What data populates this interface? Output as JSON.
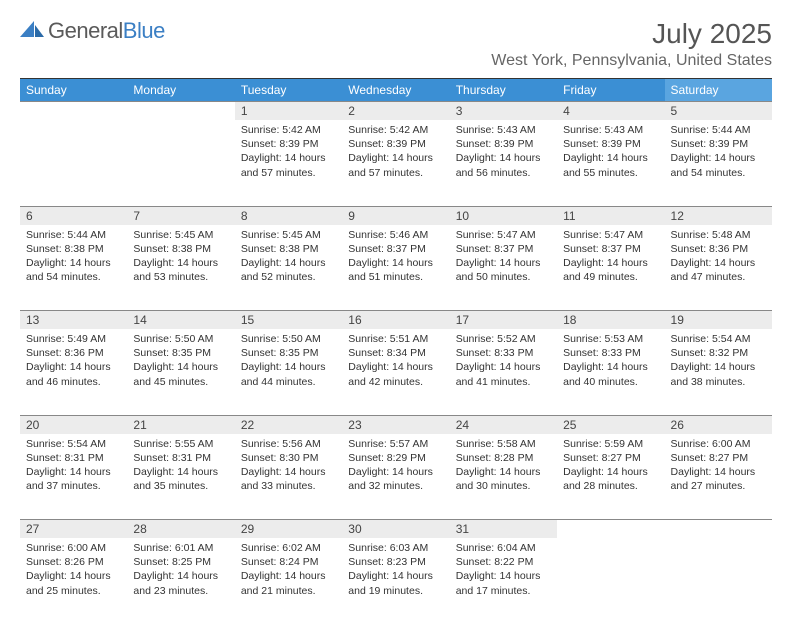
{
  "logo": {
    "part1": "General",
    "part2": "Blue"
  },
  "title": "July 2025",
  "location": "West York, Pennsylvania, United States",
  "styling": {
    "header_bg": "#3b8fd4",
    "header_sat_bg": "#5aa5e0",
    "header_fg": "#ffffff",
    "daynum_bg": "#ececec",
    "border_color": "#888888",
    "title_color": "#555555",
    "location_color": "#666666",
    "logo_gray": "#5a5a5a",
    "logo_blue": "#3b7fc4",
    "font_day_header": 12,
    "font_daynum": 12,
    "font_info": 10.5,
    "font_title": 28,
    "font_location": 16
  },
  "day_headers": [
    "Sunday",
    "Monday",
    "Tuesday",
    "Wednesday",
    "Thursday",
    "Friday",
    "Saturday"
  ],
  "weeks": [
    [
      null,
      null,
      {
        "n": "1",
        "sr": "Sunrise: 5:42 AM",
        "ss": "Sunset: 8:39 PM",
        "dl1": "Daylight: 14 hours",
        "dl2": "and 57 minutes."
      },
      {
        "n": "2",
        "sr": "Sunrise: 5:42 AM",
        "ss": "Sunset: 8:39 PM",
        "dl1": "Daylight: 14 hours",
        "dl2": "and 57 minutes."
      },
      {
        "n": "3",
        "sr": "Sunrise: 5:43 AM",
        "ss": "Sunset: 8:39 PM",
        "dl1": "Daylight: 14 hours",
        "dl2": "and 56 minutes."
      },
      {
        "n": "4",
        "sr": "Sunrise: 5:43 AM",
        "ss": "Sunset: 8:39 PM",
        "dl1": "Daylight: 14 hours",
        "dl2": "and 55 minutes."
      },
      {
        "n": "5",
        "sr": "Sunrise: 5:44 AM",
        "ss": "Sunset: 8:39 PM",
        "dl1": "Daylight: 14 hours",
        "dl2": "and 54 minutes."
      }
    ],
    [
      {
        "n": "6",
        "sr": "Sunrise: 5:44 AM",
        "ss": "Sunset: 8:38 PM",
        "dl1": "Daylight: 14 hours",
        "dl2": "and 54 minutes."
      },
      {
        "n": "7",
        "sr": "Sunrise: 5:45 AM",
        "ss": "Sunset: 8:38 PM",
        "dl1": "Daylight: 14 hours",
        "dl2": "and 53 minutes."
      },
      {
        "n": "8",
        "sr": "Sunrise: 5:45 AM",
        "ss": "Sunset: 8:38 PM",
        "dl1": "Daylight: 14 hours",
        "dl2": "and 52 minutes."
      },
      {
        "n": "9",
        "sr": "Sunrise: 5:46 AM",
        "ss": "Sunset: 8:37 PM",
        "dl1": "Daylight: 14 hours",
        "dl2": "and 51 minutes."
      },
      {
        "n": "10",
        "sr": "Sunrise: 5:47 AM",
        "ss": "Sunset: 8:37 PM",
        "dl1": "Daylight: 14 hours",
        "dl2": "and 50 minutes."
      },
      {
        "n": "11",
        "sr": "Sunrise: 5:47 AM",
        "ss": "Sunset: 8:37 PM",
        "dl1": "Daylight: 14 hours",
        "dl2": "and 49 minutes."
      },
      {
        "n": "12",
        "sr": "Sunrise: 5:48 AM",
        "ss": "Sunset: 8:36 PM",
        "dl1": "Daylight: 14 hours",
        "dl2": "and 47 minutes."
      }
    ],
    [
      {
        "n": "13",
        "sr": "Sunrise: 5:49 AM",
        "ss": "Sunset: 8:36 PM",
        "dl1": "Daylight: 14 hours",
        "dl2": "and 46 minutes."
      },
      {
        "n": "14",
        "sr": "Sunrise: 5:50 AM",
        "ss": "Sunset: 8:35 PM",
        "dl1": "Daylight: 14 hours",
        "dl2": "and 45 minutes."
      },
      {
        "n": "15",
        "sr": "Sunrise: 5:50 AM",
        "ss": "Sunset: 8:35 PM",
        "dl1": "Daylight: 14 hours",
        "dl2": "and 44 minutes."
      },
      {
        "n": "16",
        "sr": "Sunrise: 5:51 AM",
        "ss": "Sunset: 8:34 PM",
        "dl1": "Daylight: 14 hours",
        "dl2": "and 42 minutes."
      },
      {
        "n": "17",
        "sr": "Sunrise: 5:52 AM",
        "ss": "Sunset: 8:33 PM",
        "dl1": "Daylight: 14 hours",
        "dl2": "and 41 minutes."
      },
      {
        "n": "18",
        "sr": "Sunrise: 5:53 AM",
        "ss": "Sunset: 8:33 PM",
        "dl1": "Daylight: 14 hours",
        "dl2": "and 40 minutes."
      },
      {
        "n": "19",
        "sr": "Sunrise: 5:54 AM",
        "ss": "Sunset: 8:32 PM",
        "dl1": "Daylight: 14 hours",
        "dl2": "and 38 minutes."
      }
    ],
    [
      {
        "n": "20",
        "sr": "Sunrise: 5:54 AM",
        "ss": "Sunset: 8:31 PM",
        "dl1": "Daylight: 14 hours",
        "dl2": "and 37 minutes."
      },
      {
        "n": "21",
        "sr": "Sunrise: 5:55 AM",
        "ss": "Sunset: 8:31 PM",
        "dl1": "Daylight: 14 hours",
        "dl2": "and 35 minutes."
      },
      {
        "n": "22",
        "sr": "Sunrise: 5:56 AM",
        "ss": "Sunset: 8:30 PM",
        "dl1": "Daylight: 14 hours",
        "dl2": "and 33 minutes."
      },
      {
        "n": "23",
        "sr": "Sunrise: 5:57 AM",
        "ss": "Sunset: 8:29 PM",
        "dl1": "Daylight: 14 hours",
        "dl2": "and 32 minutes."
      },
      {
        "n": "24",
        "sr": "Sunrise: 5:58 AM",
        "ss": "Sunset: 8:28 PM",
        "dl1": "Daylight: 14 hours",
        "dl2": "and 30 minutes."
      },
      {
        "n": "25",
        "sr": "Sunrise: 5:59 AM",
        "ss": "Sunset: 8:27 PM",
        "dl1": "Daylight: 14 hours",
        "dl2": "and 28 minutes."
      },
      {
        "n": "26",
        "sr": "Sunrise: 6:00 AM",
        "ss": "Sunset: 8:27 PM",
        "dl1": "Daylight: 14 hours",
        "dl2": "and 27 minutes."
      }
    ],
    [
      {
        "n": "27",
        "sr": "Sunrise: 6:00 AM",
        "ss": "Sunset: 8:26 PM",
        "dl1": "Daylight: 14 hours",
        "dl2": "and 25 minutes."
      },
      {
        "n": "28",
        "sr": "Sunrise: 6:01 AM",
        "ss": "Sunset: 8:25 PM",
        "dl1": "Daylight: 14 hours",
        "dl2": "and 23 minutes."
      },
      {
        "n": "29",
        "sr": "Sunrise: 6:02 AM",
        "ss": "Sunset: 8:24 PM",
        "dl1": "Daylight: 14 hours",
        "dl2": "and 21 minutes."
      },
      {
        "n": "30",
        "sr": "Sunrise: 6:03 AM",
        "ss": "Sunset: 8:23 PM",
        "dl1": "Daylight: 14 hours",
        "dl2": "and 19 minutes."
      },
      {
        "n": "31",
        "sr": "Sunrise: 6:04 AM",
        "ss": "Sunset: 8:22 PM",
        "dl1": "Daylight: 14 hours",
        "dl2": "and 17 minutes."
      },
      null,
      null
    ]
  ]
}
